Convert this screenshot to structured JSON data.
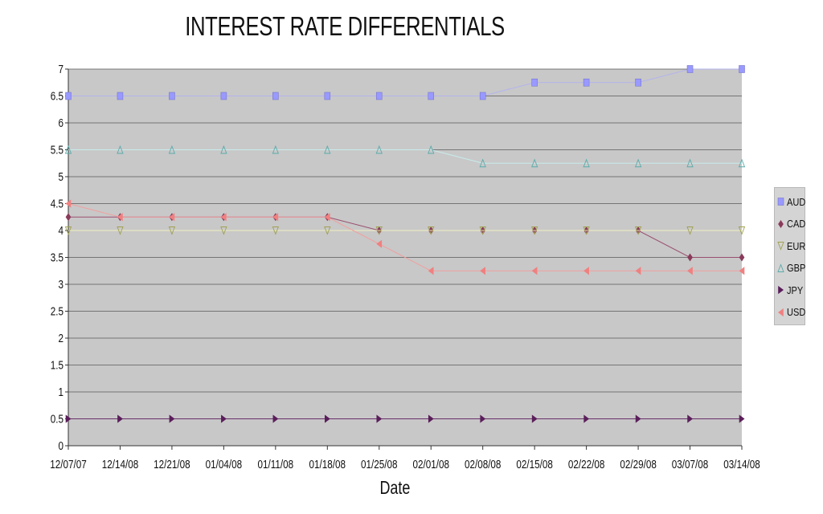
{
  "chart_data": {
    "type": "line",
    "title": "INTEREST RATE DIFFERENTIALS",
    "xlabel": "Date",
    "ylabel": "",
    "ylim": [
      0,
      7
    ],
    "yticks": [
      "0",
      "0.5",
      "1",
      "1.5",
      "2",
      "2.5",
      "3",
      "3.5",
      "4",
      "4.5",
      "5",
      "5.5",
      "6",
      "6.5",
      "7"
    ],
    "categories": [
      "12/07/07",
      "12/14/08",
      "12/21/08",
      "01/04/08",
      "01/11/08",
      "01/18/08",
      "01/25/08",
      "02/01/08",
      "02/08/08",
      "02/15/08",
      "02/22/08",
      "02/29/08",
      "03/07/08",
      "03/14/08"
    ],
    "grid": true,
    "legend_position": "right",
    "series": [
      {
        "name": "AUD",
        "marker": "square",
        "color": "#9999ff",
        "line_color": "#b3b3ee",
        "values": [
          6.5,
          6.5,
          6.5,
          6.5,
          6.5,
          6.5,
          6.5,
          6.5,
          6.5,
          6.75,
          6.75,
          6.75,
          7,
          7
        ]
      },
      {
        "name": "CAD",
        "marker": "diamond",
        "color": "#8a3a5a",
        "line_color": "#9a5070",
        "values": [
          4.25,
          4.25,
          4.25,
          4.25,
          4.25,
          4.25,
          4,
          4,
          4,
          4,
          4,
          4,
          3.5,
          3.5
        ]
      },
      {
        "name": "EUR",
        "marker": "triangle-down",
        "color": "#f2f2b0",
        "line_color": "#f0f0c0",
        "values": [
          4,
          4,
          4,
          4,
          4,
          4,
          4,
          4,
          4,
          4,
          4,
          4,
          4,
          4
        ]
      },
      {
        "name": "GBP",
        "marker": "triangle-up",
        "color": "#b8e8e8",
        "line_color": "#c8ecec",
        "values": [
          5.5,
          5.5,
          5.5,
          5.5,
          5.5,
          5.5,
          5.5,
          5.5,
          5.25,
          5.25,
          5.25,
          5.25,
          5.25,
          5.25
        ]
      },
      {
        "name": "JPY",
        "marker": "triangle-right",
        "color": "#5a1e5a",
        "line_color": "#6a306a",
        "values": [
          0.5,
          0.5,
          0.5,
          0.5,
          0.5,
          0.5,
          0.5,
          0.5,
          0.5,
          0.5,
          0.5,
          0.5,
          0.5,
          0.5
        ]
      },
      {
        "name": "USD",
        "marker": "triangle-left",
        "color": "#f08080",
        "line_color": "#f0a0a0",
        "values": [
          4.5,
          4.25,
          4.25,
          4.25,
          4.25,
          4.25,
          3.75,
          3.25,
          3.25,
          3.25,
          3.25,
          3.25,
          3.25,
          3.25
        ]
      }
    ]
  }
}
